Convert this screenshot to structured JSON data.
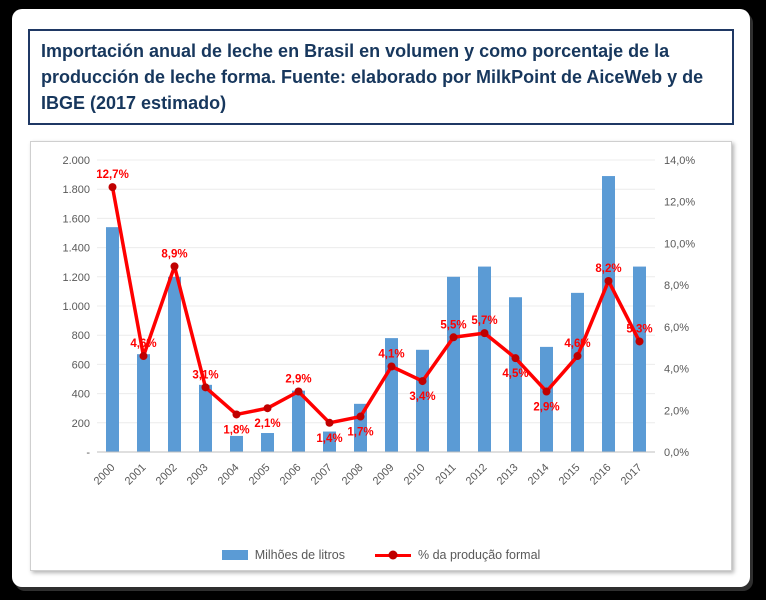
{
  "title": "Importación anual de leche en Brasil en volumen y como porcentaje de la producción de leche forma. Fuente: elaborado por MilkPoint de AiceWeb y de IBGE (2017 estimado)",
  "colors": {
    "bars": "#5B9BD5",
    "line": "#FF0000",
    "marker": "#C00000",
    "title_text": "#17375D",
    "title_border": "#1F3864",
    "axis_text": "#595959"
  },
  "chart_data": {
    "type": "bar+line combo",
    "categories": [
      "2000",
      "2001",
      "2002",
      "2003",
      "2004",
      "2005",
      "2006",
      "2007",
      "2008",
      "2009",
      "2010",
      "2011",
      "2012",
      "2013",
      "2014",
      "2015",
      "2016",
      "2017"
    ],
    "series": [
      {
        "name": "Milhões de litros",
        "type": "bar",
        "axis": "left",
        "color": "#5B9BD5",
        "values": [
          1540,
          670,
          1200,
          460,
          110,
          130,
          420,
          140,
          330,
          780,
          700,
          1200,
          1270,
          1060,
          720,
          1090,
          1890,
          1270
        ]
      },
      {
        "name": "% da produção formal",
        "type": "line",
        "axis": "right",
        "color": "#FF0000",
        "values": [
          12.7,
          4.6,
          8.9,
          3.1,
          1.8,
          2.1,
          2.9,
          1.4,
          1.7,
          4.1,
          3.4,
          5.5,
          5.7,
          4.5,
          2.9,
          4.6,
          8.2,
          5.3
        ],
        "labels": [
          "12,7%",
          "4,6%",
          "8,9%",
          "3,1%",
          "1,8%",
          "2,1%",
          "2,9%",
          "1,4%",
          "1,7%",
          "4,1%",
          "3,4%",
          "5,5%",
          "5,7%",
          "4,5%",
          "2,9%",
          "4,6%",
          "8,2%",
          "5,3%"
        ],
        "label_position": [
          "above",
          "above",
          "above",
          "above",
          "below",
          "below",
          "above",
          "below",
          "below",
          "above",
          "below",
          "above",
          "above",
          "below",
          "below",
          "above",
          "above",
          "above"
        ]
      }
    ],
    "left_axis": {
      "min": 0,
      "max": 2000,
      "step": 200,
      "tick_labels": [
        "-",
        "200",
        "400",
        "600",
        "800",
        "1.000",
        "1.200",
        "1.400",
        "1.600",
        "1.800",
        "2.000"
      ]
    },
    "right_axis": {
      "min": 0,
      "max": 14,
      "step": 2,
      "tick_labels": [
        "0,0%",
        "2,0%",
        "4,0%",
        "6,0%",
        "8,0%",
        "10,0%",
        "12,0%",
        "14,0%"
      ]
    },
    "grid": true,
    "legend_position": "bottom"
  }
}
